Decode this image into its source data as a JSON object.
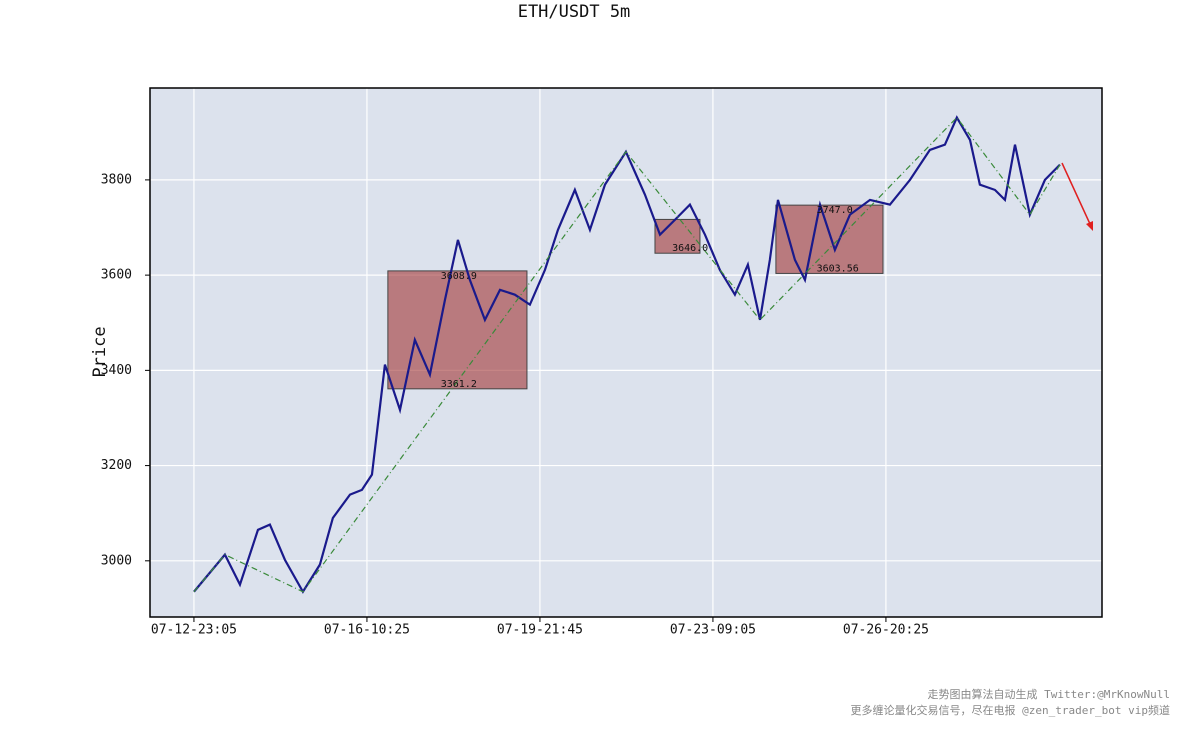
{
  "chart_data": {
    "type": "line",
    "title": "ETH/USDT 5m",
    "y_label": "Price",
    "xlim": [
      -254,
      5249
    ],
    "ylim": [
      2882,
      3993
    ],
    "xticks": [
      {
        "value": 0,
        "label": "07-12-23:05"
      },
      {
        "value": 1000,
        "label": "07-16-10:25"
      },
      {
        "value": 2000,
        "label": "07-19-21:45"
      },
      {
        "value": 3000,
        "label": "07-23-09:05"
      },
      {
        "value": 4000,
        "label": "07-26-20:25"
      }
    ],
    "yticks": [
      3000,
      3200,
      3400,
      3600,
      3800
    ],
    "grid": true,
    "series": [
      {
        "color": "#1a1a8c",
        "x": [
          0,
          179,
          266,
          370,
          439,
          526,
          630,
          728,
          803,
          902,
          971,
          1029,
          1104,
          1191,
          1277,
          1364,
          1451,
          1526,
          1595,
          1682,
          1769,
          1855,
          1942,
          2029,
          2104,
          2202,
          2289,
          2376,
          2497,
          2607,
          2694,
          2780,
          2867,
          2954,
          3040,
          3127,
          3202,
          3272,
          3329,
          3376,
          3474,
          3532,
          3619,
          3705,
          3792,
          3908,
          4023,
          4139,
          4254,
          4341,
          4410,
          4486,
          4543,
          4630,
          4688,
          4746,
          4832,
          4919,
          5006
        ],
        "values": [
          2935,
          3013,
          2950,
          3065,
          3076,
          3002,
          2935,
          2992,
          3090,
          3139,
          3149,
          3181,
          3412,
          3317,
          3464,
          3391,
          3548,
          3674,
          3590,
          3506,
          3569,
          3559,
          3538,
          3611,
          3695,
          3779,
          3695,
          3790,
          3859,
          3769,
          3685,
          3716,
          3748,
          3685,
          3611,
          3559,
          3622,
          3506,
          3632,
          3758,
          3632,
          3590,
          3748,
          3653,
          3727,
          3758,
          3748,
          3800,
          3863,
          3874,
          3931,
          3884,
          3790,
          3779,
          3758,
          3874,
          3727,
          3800,
          3832
        ]
      },
      {
        "color": "#3a8a3a",
        "x": [
          0,
          179,
          630,
          2497,
          3272,
          4410,
          4832,
          5006
        ],
        "values": [
          2935,
          3013,
          2935,
          3859,
          3506,
          3931,
          3727,
          3832
        ]
      }
    ],
    "boxes": [
      {
        "x": [
          1121,
          1925
        ],
        "values": [
          3608.9,
          3361.2
        ],
        "value_labels": [
          "3608.9",
          "3361.2"
        ]
      },
      {
        "x": [
          2665,
          2925
        ],
        "values": [
          3717,
          3646
        ],
        "value_labels": [
          null,
          "3646.0"
        ]
      },
      {
        "x": [
          3364,
          3983
        ],
        "values": [
          3747,
          3603.56
        ],
        "value_labels": [
          "3747.0",
          "3603.56"
        ]
      }
    ],
    "notes": [
      "走势图由算法自动生成  Twitter:@MrKnowNull",
      "更多缠论量化交易信号，尽在电报 @zen_trader_bot vip频道"
    ]
  }
}
